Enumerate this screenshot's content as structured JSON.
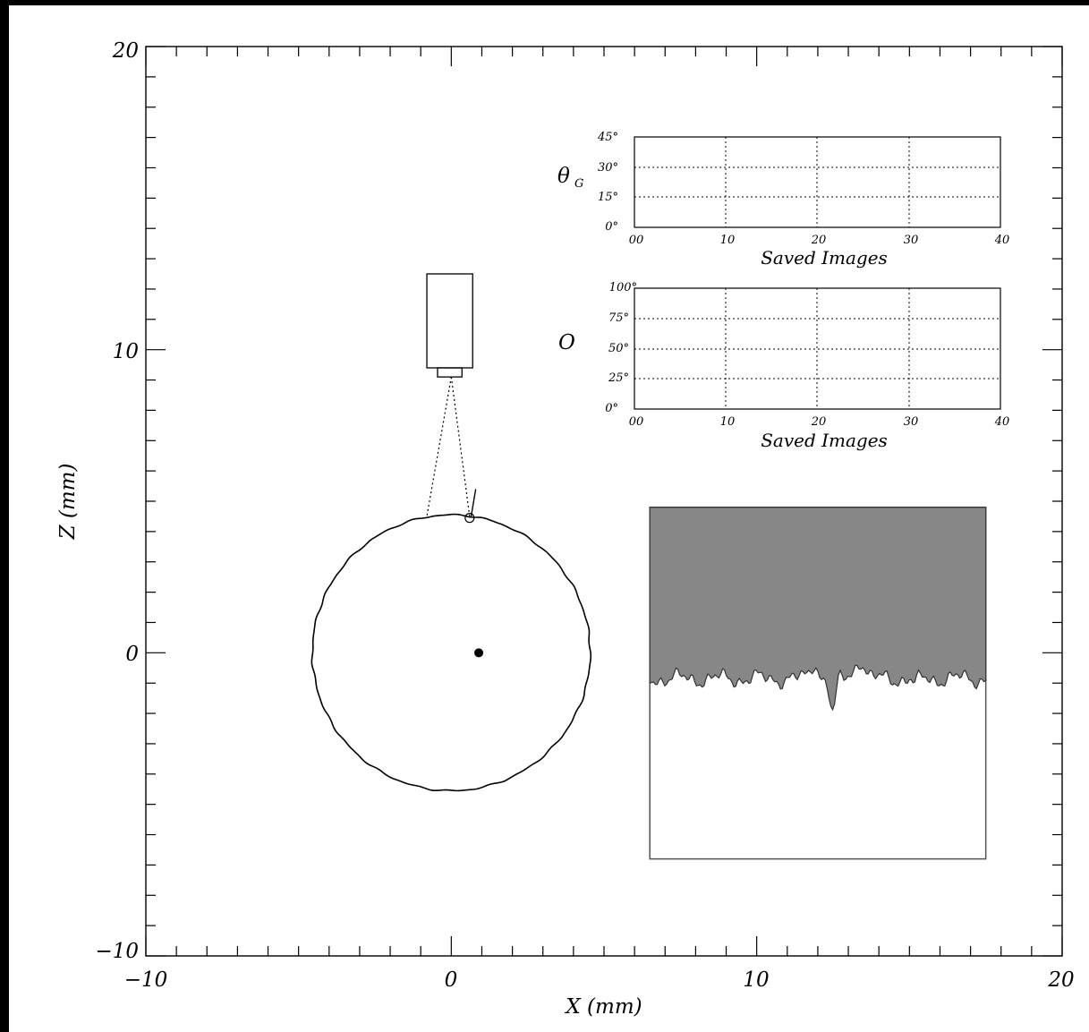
{
  "chart_data": [
    {
      "type": "scatter",
      "title": "",
      "xlabel": "X (mm)",
      "ylabel": "Z (mm)",
      "xlim": [
        -10,
        20
      ],
      "ylim": [
        -10,
        20
      ],
      "x_ticks": [
        -10,
        0,
        10,
        20
      ],
      "x_tick_labels": [
        "−10",
        "0",
        "10",
        "20"
      ],
      "y_ticks": [
        -10,
        0,
        10,
        20
      ],
      "y_tick_labels": [
        "−10",
        "0",
        "10",
        "20"
      ],
      "grid": false,
      "circle": {
        "center": [
          0,
          0
        ],
        "radius": 4.55
      },
      "center_point": {
        "x": 0.9,
        "z": 0.0
      },
      "camera": {
        "x_range": [
          -0.8,
          0.7
        ],
        "z_range": [
          9.4,
          12.5
        ],
        "lens_z": [
          9.1,
          9.4
        ]
      },
      "view_cone": {
        "apex": [
          0,
          9.1
        ],
        "ends": [
          [
            -0.8,
            4.5
          ],
          [
            0.6,
            4.5
          ]
        ]
      },
      "marker": {
        "x": 0.6,
        "z": 4.45
      },
      "needle": [
        [
          0.65,
          4.5
        ],
        [
          0.8,
          5.4
        ]
      ],
      "surface_image": {
        "x_range": [
          6.5,
          17.5
        ],
        "z_range": [
          -6.8,
          4.8
        ],
        "fill_color": "#878787",
        "profile_z_min": -2.05,
        "profile_z_max": -0.05
      }
    },
    {
      "type": "line",
      "ylabel": "θ",
      "ylabel_sub": "G",
      "xlabel": "Saved Images",
      "xlim": [
        0,
        40
      ],
      "ylim": [
        0,
        45
      ],
      "x_tick_labels": [
        "00",
        "10",
        "20",
        "30",
        "40"
      ],
      "y_tick_labels": [
        "0°",
        "15°",
        "30°",
        "45°"
      ],
      "grid": true,
      "series": []
    },
    {
      "type": "line",
      "ylabel": "O",
      "xlabel": "Saved Images",
      "xlim": [
        0,
        40
      ],
      "ylim": [
        0,
        100
      ],
      "x_tick_labels": [
        "00",
        "10",
        "20",
        "30",
        "40"
      ],
      "y_tick_labels": [
        "0°",
        "25°",
        "50°",
        "75°",
        "100°"
      ],
      "grid": true,
      "series": []
    }
  ]
}
